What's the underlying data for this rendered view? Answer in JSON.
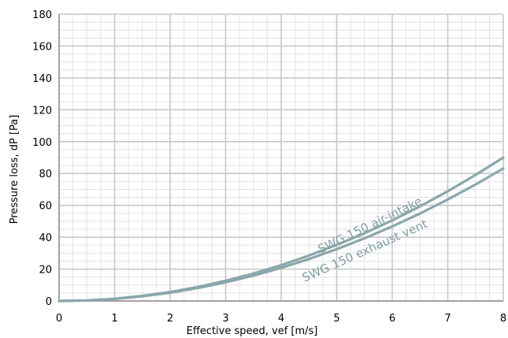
{
  "chart_data": {
    "type": "line",
    "xlabel": "Effective speed, vef [m/s]",
    "ylabel": "Pressure loss, dP [Pa]",
    "xlim": [
      0,
      8
    ],
    "ylim": [
      0,
      180
    ],
    "x_ticks": [
      "0",
      "1",
      "2",
      "3",
      "4",
      "5",
      "6",
      "7",
      "8"
    ],
    "y_ticks": [
      "0",
      "20",
      "40",
      "60",
      "80",
      "100",
      "120",
      "140",
      "160",
      "180"
    ],
    "grid": true,
    "x": [
      0,
      0.5,
      1,
      1.5,
      2,
      2.5,
      3,
      3.5,
      4,
      4.5,
      5,
      5.5,
      6,
      6.5,
      7,
      7.5,
      8
    ],
    "series": [
      {
        "name": "SWG 150 air-intake",
        "values": [
          0,
          0.35,
          1.4,
          3.2,
          5.6,
          8.8,
          12.7,
          17.2,
          22.5,
          28.5,
          35.2,
          42.5,
          50.6,
          59.4,
          68.9,
          79.1,
          90.0
        ]
      },
      {
        "name": "SWG 150 exhaust vent",
        "values": [
          0,
          0.33,
          1.3,
          2.9,
          5.2,
          8.1,
          11.7,
          15.9,
          20.8,
          26.3,
          32.5,
          39.3,
          46.8,
          54.9,
          63.7,
          73.1,
          83.2
        ]
      }
    ],
    "colors": {
      "line": "#8aa7ab",
      "label": "#7f9fa6",
      "grid_major": "#c8c8c8",
      "grid_minor": "#e3e3e3"
    }
  }
}
